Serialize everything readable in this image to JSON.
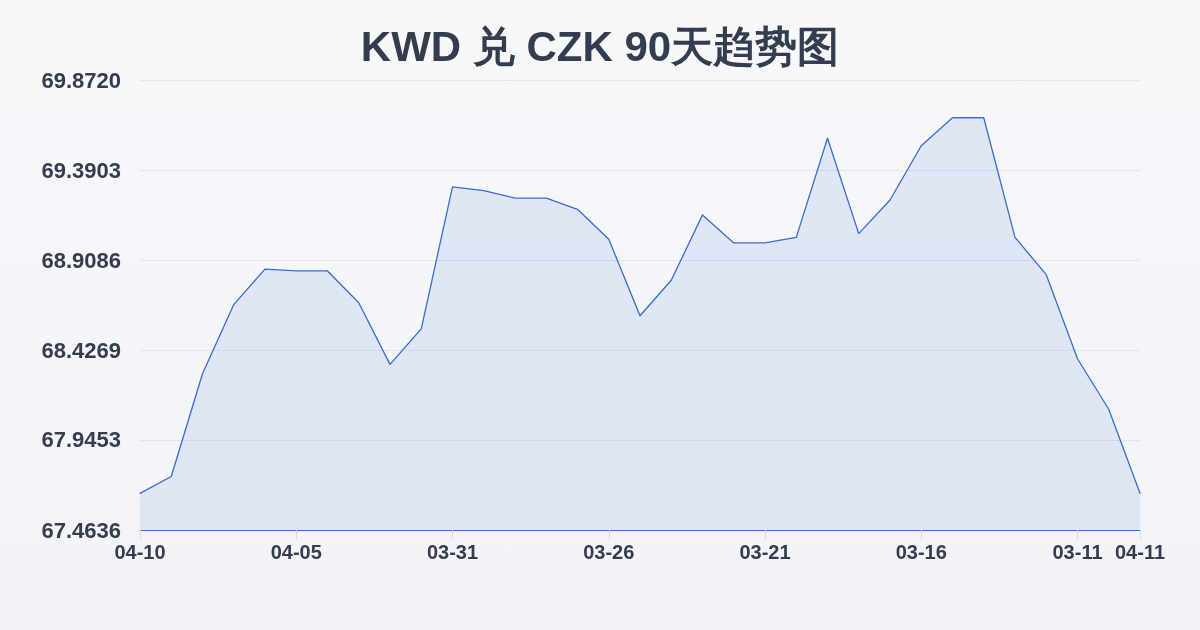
{
  "chart_data": {
    "type": "area",
    "title": "KWD 兑 CZK 90天趋势图",
    "categories": [
      "04-10",
      null,
      null,
      null,
      null,
      "04-05",
      null,
      null,
      null,
      null,
      "03-31",
      null,
      null,
      null,
      null,
      "03-26",
      null,
      null,
      null,
      null,
      "03-21",
      null,
      null,
      null,
      null,
      "03-16",
      null,
      null,
      null,
      null,
      "03-11",
      null,
      "04-11"
    ],
    "series": [
      {
        "color": "#3a6bd1",
        "values": [
          67.66,
          67.75,
          68.3,
          68.67,
          68.86,
          68.85,
          68.85,
          68.68,
          68.35,
          68.54,
          69.3,
          69.28,
          69.24,
          69.24,
          69.18,
          69.02,
          68.61,
          68.8,
          69.15,
          69.0,
          69.0,
          69.03,
          69.56,
          69.05,
          69.23,
          69.52,
          69.67,
          69.67,
          69.03,
          68.83,
          68.38,
          68.11,
          67.66
        ]
      }
    ],
    "ylim": [
      67.4636,
      69.872
    ],
    "yticks": [
      67.4636,
      67.9453,
      68.4269,
      68.9086,
      69.3903,
      {
        "value": 69.872,
        "label": "69.8720"
      }
    ],
    "grid": "y",
    "marker": "none"
  }
}
